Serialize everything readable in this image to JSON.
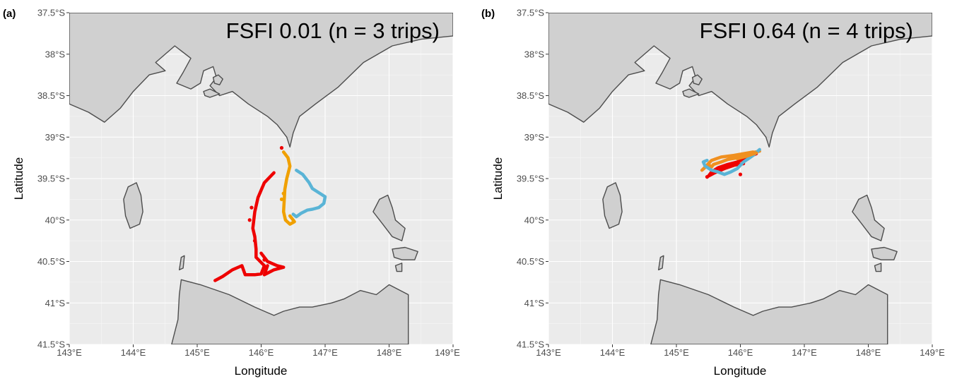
{
  "chart_data": [
    {
      "type": "map",
      "tag": "(a)",
      "title": "FSFI 0.01 (n = 3 trips)",
      "xlabel": "Longitude",
      "ylabel": "Latitude",
      "xlim": [
        143,
        149
      ],
      "ylim": [
        -41.5,
        -37.5
      ],
      "x_ticks": [
        143,
        144,
        145,
        146,
        147,
        148,
        149
      ],
      "x_tick_labels": [
        "143°E",
        "144°E",
        "145°E",
        "146°E",
        "147°E",
        "148°E",
        "149°E"
      ],
      "y_ticks": [
        -37.5,
        -38,
        -38.5,
        -39,
        -39.5,
        -40,
        -40.5,
        -41,
        -41.5
      ],
      "y_tick_labels": [
        "37.5°S",
        "38°S",
        "38.5°S",
        "39°S",
        "39.5°S",
        "40°S",
        "40.5°S",
        "41°S",
        "41.5°S"
      ],
      "grid": true,
      "colors": {
        "background": "#ebebeb",
        "land": "#d0d0d0",
        "coast": "#4d4d4d"
      },
      "tracks": [
        {
          "color": "#ee0000",
          "points": [
            [
              146.2,
              -39.43
            ],
            [
              146.05,
              -39.55
            ],
            [
              145.95,
              -39.73
            ],
            [
              145.9,
              -39.9
            ],
            [
              145.87,
              -40.1
            ],
            [
              145.9,
              -40.2
            ],
            [
              145.92,
              -40.35
            ],
            [
              145.92,
              -40.45
            ],
            [
              146.05,
              -40.55
            ],
            [
              146.0,
              -40.65
            ],
            [
              145.9,
              -40.66
            ],
            [
              145.75,
              -40.66
            ],
            [
              145.7,
              -40.55
            ],
            [
              145.55,
              -40.6
            ],
            [
              145.4,
              -40.68
            ],
            [
              145.28,
              -40.73
            ]
          ]
        },
        {
          "color": "#ee0000",
          "points": [
            [
              146.0,
              -40.4
            ],
            [
              146.1,
              -40.5
            ],
            [
              146.25,
              -40.55
            ],
            [
              146.35,
              -40.57
            ],
            [
              146.2,
              -40.6
            ],
            [
              146.05,
              -40.66
            ],
            [
              146.1,
              -40.55
            ]
          ]
        },
        {
          "color": "#f0a000",
          "points": [
            [
              146.35,
              -39.18
            ],
            [
              146.42,
              -39.25
            ],
            [
              146.45,
              -39.35
            ],
            [
              146.4,
              -39.5
            ],
            [
              146.37,
              -39.63
            ],
            [
              146.35,
              -39.9
            ],
            [
              146.38,
              -40.0
            ],
            [
              146.45,
              -40.05
            ],
            [
              146.52,
              -40.02
            ],
            [
              146.45,
              -39.95
            ]
          ]
        },
        {
          "color": "#5ab4d6",
          "points": [
            [
              146.55,
              -39.4
            ],
            [
              146.65,
              -39.45
            ],
            [
              146.75,
              -39.55
            ],
            [
              146.8,
              -39.62
            ],
            [
              146.92,
              -39.68
            ],
            [
              147.0,
              -39.72
            ],
            [
              146.98,
              -39.8
            ],
            [
              146.9,
              -39.85
            ],
            [
              146.8,
              -39.87
            ],
            [
              146.72,
              -39.88
            ],
            [
              146.62,
              -39.92
            ],
            [
              146.55,
              -39.96
            ],
            [
              146.5,
              -39.93
            ]
          ]
        }
      ],
      "fixes": [
        {
          "color": "#ee0000",
          "points": [
            [
              146.32,
              -39.13
            ],
            [
              145.85,
              -39.85
            ],
            [
              145.82,
              -40.0
            ],
            [
              145.9,
              -40.25
            ],
            [
              146.05,
              -40.48
            ]
          ]
        },
        {
          "color": "#f0a000",
          "points": [
            [
              146.35,
              -39.68
            ],
            [
              146.32,
              -39.75
            ]
          ]
        }
      ]
    },
    {
      "type": "map",
      "tag": "(b)",
      "title": "FSFI 0.64 (n = 4 trips)",
      "xlabel": "Longitude",
      "ylabel": "Latitude",
      "xlim": [
        143,
        149
      ],
      "ylim": [
        -41.5,
        -37.5
      ],
      "x_ticks": [
        143,
        144,
        145,
        146,
        147,
        148,
        149
      ],
      "x_tick_labels": [
        "143°E",
        "144°E",
        "145°E",
        "146°E",
        "147°E",
        "148°E",
        "149°E"
      ],
      "y_ticks": [
        -37.5,
        -38,
        -38.5,
        -39,
        -39.5,
        -40,
        -40.5,
        -41,
        -41.5
      ],
      "y_tick_labels": [
        "37.5°S",
        "38°S",
        "38.5°S",
        "39°S",
        "39.5°S",
        "40°S",
        "40.5°S",
        "41°S",
        "41.5°S"
      ],
      "grid": true,
      "colors": {
        "background": "#ebebeb",
        "land": "#d0d0d0",
        "coast": "#4d4d4d"
      },
      "tracks": [
        {
          "color": "#ee0000",
          "points": [
            [
              146.25,
              -39.2
            ],
            [
              146.1,
              -39.25
            ],
            [
              145.95,
              -39.3
            ],
            [
              145.8,
              -39.33
            ],
            [
              145.65,
              -39.37
            ],
            [
              145.55,
              -39.42
            ],
            [
              145.5,
              -39.47
            ],
            [
              145.6,
              -39.43
            ],
            [
              145.75,
              -39.38
            ],
            [
              145.9,
              -39.34
            ],
            [
              146.05,
              -39.32
            ]
          ]
        },
        {
          "color": "#f09020",
          "points": [
            [
              146.3,
              -39.17
            ],
            [
              146.1,
              -39.2
            ],
            [
              145.95,
              -39.25
            ],
            [
              145.8,
              -39.27
            ],
            [
              145.7,
              -39.3
            ],
            [
              145.58,
              -39.33
            ],
            [
              145.55,
              -39.36
            ],
            [
              145.5,
              -39.33
            ],
            [
              145.4,
              -39.4
            ],
            [
              145.55,
              -39.28
            ],
            [
              145.7,
              -39.24
            ],
            [
              145.9,
              -39.22
            ],
            [
              146.2,
              -39.18
            ]
          ]
        },
        {
          "color": "#5ab4d6",
          "points": [
            [
              146.3,
              -39.15
            ],
            [
              146.2,
              -39.22
            ],
            [
              146.05,
              -39.3
            ],
            [
              145.95,
              -39.38
            ],
            [
              145.85,
              -39.42
            ],
            [
              145.75,
              -39.45
            ],
            [
              145.65,
              -39.42
            ],
            [
              145.55,
              -39.4
            ],
            [
              145.45,
              -39.35
            ],
            [
              145.42,
              -39.3
            ],
            [
              145.48,
              -39.28
            ]
          ]
        },
        {
          "color": "#f09020",
          "points": [
            [
              145.95,
              -39.26
            ],
            [
              146.1,
              -39.23
            ],
            [
              146.25,
              -39.19
            ]
          ]
        }
      ],
      "fixes": [
        {
          "color": "#ee0000",
          "points": [
            [
              145.48,
              -39.48
            ],
            [
              146.0,
              -39.45
            ]
          ]
        }
      ]
    }
  ]
}
